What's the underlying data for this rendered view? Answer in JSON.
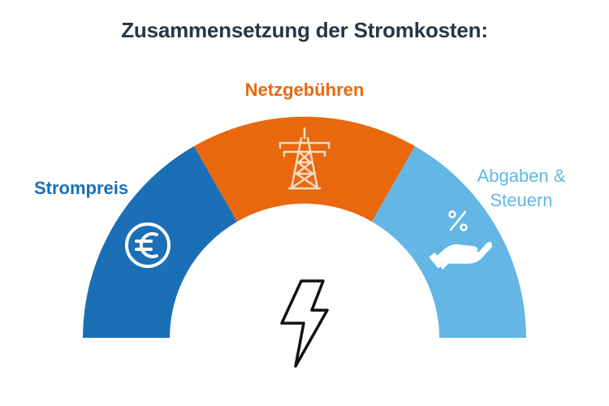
{
  "title": "Zusammensetzung der Stromkosten:",
  "segments": [
    {
      "label": "Strompreis",
      "color": "#1b6fb6",
      "icon": "euro-icon"
    },
    {
      "label": "Netzgebühren",
      "color": "#e9680d",
      "icon": "power-tower-icon"
    },
    {
      "label_lines": [
        "Abgaben &",
        "Steuern"
      ],
      "color": "#64b6e4",
      "icon": "percent-hand-icon"
    }
  ],
  "center_icon": "lightning-bolt-icon"
}
